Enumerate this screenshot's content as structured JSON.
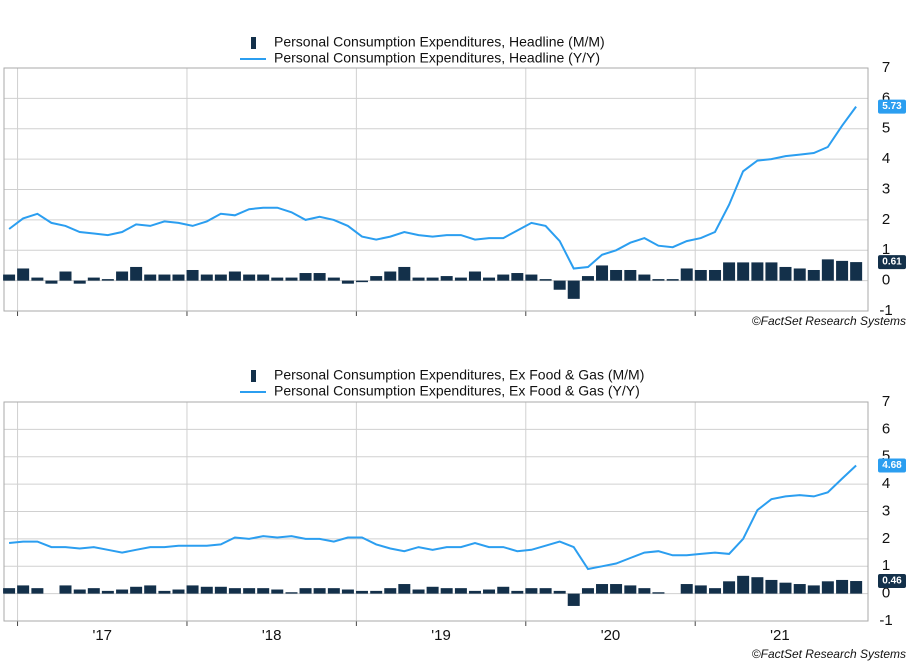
{
  "chart_data": [
    {
      "type": "combo",
      "series": [
        {
          "name": "Personal Consumption Expenditures, Headline (M/M)",
          "type": "bar",
          "color": "#13304a",
          "values": [
            0.2,
            0.4,
            0.1,
            -0.1,
            0.3,
            -0.1,
            0.1,
            0.05,
            0.3,
            0.45,
            0.2,
            0.2,
            0.2,
            0.35,
            0.2,
            0.2,
            0.3,
            0.2,
            0.2,
            0.1,
            0.1,
            0.25,
            0.25,
            0.1,
            -0.1,
            -0.05,
            0.15,
            0.3,
            0.45,
            0.1,
            0.1,
            0.15,
            0.1,
            0.3,
            0.1,
            0.2,
            0.25,
            0.2,
            0.05,
            -0.3,
            -0.6,
            0.15,
            0.5,
            0.35,
            0.35,
            0.2,
            0.05,
            0.05,
            0.4,
            0.35,
            0.35,
            0.6,
            0.6,
            0.6,
            0.6,
            0.45,
            0.4,
            0.35,
            0.7,
            0.65,
            0.61
          ]
        },
        {
          "name": "Personal Consumption Expenditures, Headline (Y/Y)",
          "type": "line",
          "color": "#2b9ef0",
          "values": [
            1.7,
            2.05,
            2.2,
            1.9,
            1.8,
            1.6,
            1.55,
            1.5,
            1.6,
            1.85,
            1.8,
            1.95,
            1.9,
            1.8,
            1.95,
            2.2,
            2.15,
            2.35,
            2.4,
            2.4,
            2.25,
            2.0,
            2.1,
            2.0,
            1.8,
            1.45,
            1.35,
            1.45,
            1.6,
            1.5,
            1.45,
            1.5,
            1.5,
            1.35,
            1.4,
            1.4,
            1.65,
            1.9,
            1.8,
            1.3,
            0.4,
            0.45,
            0.85,
            1.0,
            1.25,
            1.4,
            1.15,
            1.1,
            1.3,
            1.4,
            1.6,
            2.5,
            3.6,
            3.95,
            4.0,
            4.1,
            4.15,
            4.2,
            4.4,
            5.1,
            5.73
          ]
        }
      ],
      "x": [
        2016.95,
        2017.033,
        2017.117,
        2017.2,
        2017.283,
        2017.367,
        2017.45,
        2017.533,
        2017.617,
        2017.7,
        2017.783,
        2017.867,
        2017.95,
        2018.033,
        2018.117,
        2018.2,
        2018.283,
        2018.367,
        2018.45,
        2018.533,
        2018.617,
        2018.7,
        2018.783,
        2018.867,
        2018.95,
        2019.033,
        2019.117,
        2019.2,
        2019.283,
        2019.367,
        2019.45,
        2019.533,
        2019.617,
        2019.7,
        2019.783,
        2019.867,
        2019.95,
        2020.033,
        2020.117,
        2020.2,
        2020.283,
        2020.367,
        2020.45,
        2020.533,
        2020.617,
        2020.7,
        2020.783,
        2020.867,
        2020.95,
        2021.033,
        2021.117,
        2021.2,
        2021.283,
        2021.367,
        2021.45,
        2021.533,
        2021.617,
        2021.7,
        2021.783,
        2021.867,
        2021.95
      ],
      "xlim": [
        2016.92,
        2022.02
      ],
      "xticks": [
        2017,
        2018,
        2019,
        2020,
        2021
      ],
      "ylim": [
        -1,
        7
      ],
      "yticks": [
        -1,
        0,
        1,
        2,
        3,
        4,
        5,
        6,
        7
      ],
      "grid": true,
      "source": "©FactSet Research Systems"
    },
    {
      "type": "combo",
      "series": [
        {
          "name": "Personal Consumption Expenditures, Ex Food & Gas (M/M)",
          "type": "bar",
          "color": "#13304a",
          "values": [
            0.2,
            0.3,
            0.2,
            0.0,
            0.3,
            0.15,
            0.2,
            0.1,
            0.15,
            0.25,
            0.3,
            0.1,
            0.15,
            0.3,
            0.25,
            0.25,
            0.2,
            0.2,
            0.2,
            0.15,
            0.05,
            0.2,
            0.2,
            0.2,
            0.15,
            0.1,
            0.1,
            0.2,
            0.35,
            0.15,
            0.25,
            0.2,
            0.2,
            0.1,
            0.15,
            0.25,
            0.1,
            0.2,
            0.2,
            0.1,
            -0.45,
            0.2,
            0.35,
            0.35,
            0.3,
            0.2,
            0.05,
            0.0,
            0.35,
            0.3,
            0.2,
            0.45,
            0.65,
            0.6,
            0.5,
            0.4,
            0.35,
            0.3,
            0.45,
            0.5,
            0.46
          ]
        },
        {
          "name": "Personal Consumption Expenditures, Ex Food & Gas (Y/Y)",
          "type": "line",
          "color": "#2b9ef0",
          "values": [
            1.85,
            1.9,
            1.9,
            1.7,
            1.7,
            1.65,
            1.7,
            1.6,
            1.5,
            1.6,
            1.7,
            1.7,
            1.75,
            1.75,
            1.75,
            1.8,
            2.05,
            2.0,
            2.1,
            2.05,
            2.1,
            2.0,
            2.0,
            1.9,
            2.05,
            2.05,
            1.8,
            1.65,
            1.55,
            1.7,
            1.6,
            1.7,
            1.7,
            1.85,
            1.7,
            1.7,
            1.55,
            1.6,
            1.75,
            1.9,
            1.7,
            0.9,
            1.0,
            1.1,
            1.3,
            1.5,
            1.55,
            1.4,
            1.4,
            1.45,
            1.5,
            1.45,
            2.0,
            3.05,
            3.45,
            3.55,
            3.6,
            3.55,
            3.7,
            4.2,
            4.68
          ]
        }
      ],
      "x": [
        2016.95,
        2017.033,
        2017.117,
        2017.2,
        2017.283,
        2017.367,
        2017.45,
        2017.533,
        2017.617,
        2017.7,
        2017.783,
        2017.867,
        2017.95,
        2018.033,
        2018.117,
        2018.2,
        2018.283,
        2018.367,
        2018.45,
        2018.533,
        2018.617,
        2018.7,
        2018.783,
        2018.867,
        2018.95,
        2019.033,
        2019.117,
        2019.2,
        2019.283,
        2019.367,
        2019.45,
        2019.533,
        2019.617,
        2019.7,
        2019.783,
        2019.867,
        2019.95,
        2020.033,
        2020.117,
        2020.2,
        2020.283,
        2020.367,
        2020.45,
        2020.533,
        2020.617,
        2020.7,
        2020.783,
        2020.867,
        2020.95,
        2021.033,
        2021.117,
        2021.2,
        2021.283,
        2021.367,
        2021.45,
        2021.533,
        2021.617,
        2021.7,
        2021.783,
        2021.867,
        2021.95
      ],
      "xlim": [
        2016.92,
        2022.02
      ],
      "xticks": [
        2017,
        2018,
        2019,
        2020,
        2021
      ],
      "xtick_labels": [
        {
          "value": 2017.5,
          "label": "'17"
        },
        {
          "value": 2018.5,
          "label": "'18"
        },
        {
          "value": 2019.5,
          "label": "'19"
        },
        {
          "value": 2020.5,
          "label": "'20"
        },
        {
          "value": 2021.5,
          "label": "'21"
        }
      ],
      "ylim": [
        -1,
        7
      ],
      "yticks": [
        -1,
        0,
        1,
        2,
        3,
        4,
        5,
        6,
        7
      ],
      "grid": true,
      "source": "©FactSet Research Systems"
    }
  ]
}
